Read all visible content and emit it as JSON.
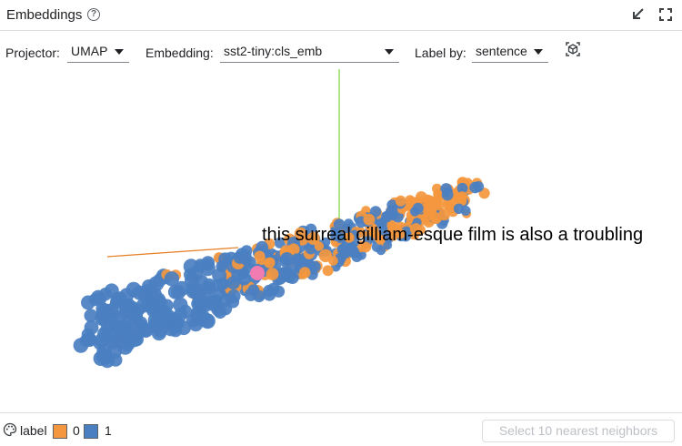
{
  "header": {
    "title": "Embeddings",
    "help_icon": "?"
  },
  "toolbar": {
    "projector_label": "Projector:",
    "projector_value": "UMAP",
    "embedding_label": "Embedding:",
    "embedding_value": "sst2-tiny:cls_emb",
    "labelby_label": "Label by:",
    "labelby_value": "sentence"
  },
  "canvas": {
    "hover_sentence": "this surreal gilliam-esque film is also a troubling",
    "colors": {
      "label_0": "#f4973e",
      "label_1": "#4a7fc1",
      "selected": "#f07cb1",
      "axis_y": "#7bd13a",
      "axis_x": "#e67d22"
    }
  },
  "footer": {
    "legend_label": "label",
    "legend_items": [
      {
        "value": "0",
        "color": "#f4973e"
      },
      {
        "value": "1",
        "color": "#4a7fc1"
      }
    ],
    "nn_button": "Select 10 nearest neighbors"
  }
}
